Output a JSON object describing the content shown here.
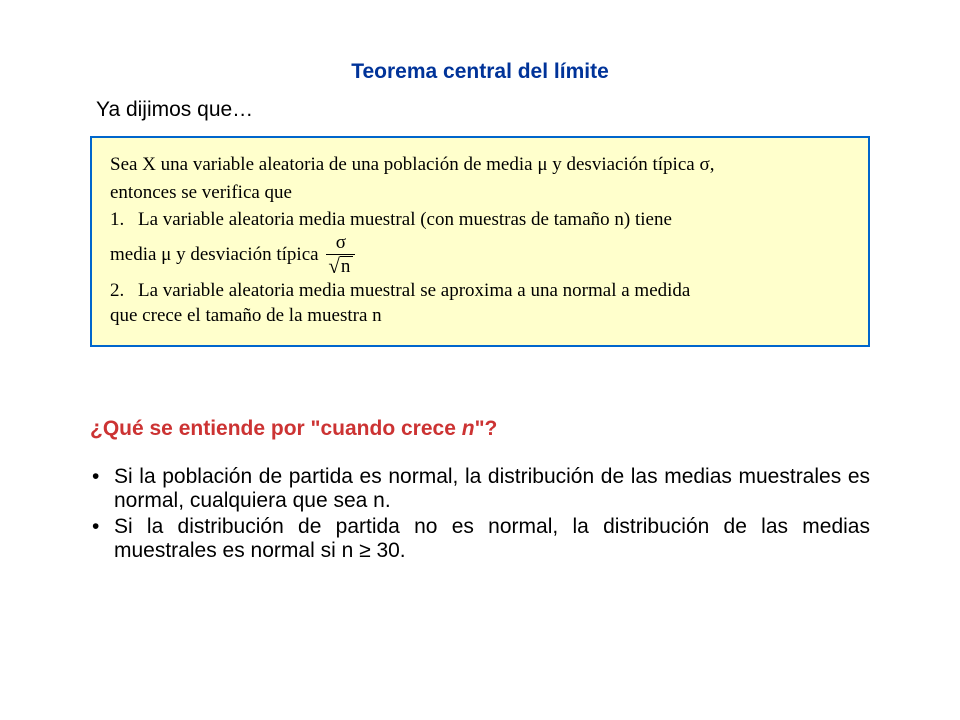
{
  "title": "Teorema central del límite",
  "intro": "Ya dijimos que…",
  "box": {
    "background": "#ffffcc",
    "border": "#0066cc",
    "lead_a": "Sea X una variable aleatoria de una población de media μ y desviación típica σ,",
    "lead_b": "entonces se verifica que",
    "item1_num": "1.",
    "item1_a": "La variable aleatoria media muestral (con muestras de tamaño n) tiene",
    "item1_b_prefix": "media μ y desviación típica",
    "frac_top": "σ",
    "frac_bot_radicand": "n",
    "item2_num": "2.",
    "item2_a": "La variable aleatoria media muestral se aproxima a una normal a medida",
    "item2_b": "que crece el tamaño de la muestra n"
  },
  "question_prefix": "¿Qué se entiende por \"cuando crece ",
  "question_n": "n",
  "question_suffix": "\"?",
  "bullets": [
    "Si la población de partida es normal, la distribución de las medias muestrales es normal, cualquiera que sea n.",
    "Si la distribución de partida no es normal, la distribución de las medias muestrales es normal si n ≥ 30."
  ],
  "colors": {
    "title": "#003399",
    "question": "#cc3333",
    "body": "#000000"
  },
  "fonts": {
    "body_family": "Arial",
    "box_family": "Times New Roman",
    "title_size_pt": 16,
    "body_size_pt": 16,
    "box_size_pt": 14
  }
}
